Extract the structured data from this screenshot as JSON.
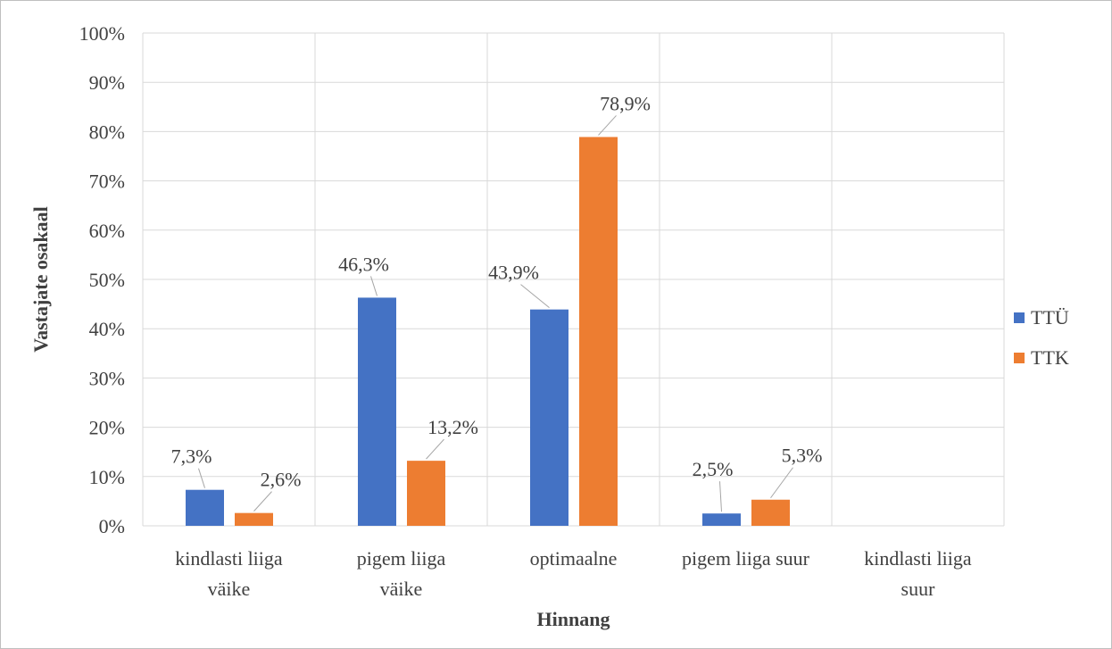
{
  "chart_data": {
    "type": "bar",
    "title": "",
    "xlabel": "Hinnang",
    "ylabel": "Vastajate osakaal",
    "ylim": [
      0,
      100
    ],
    "yticks": [
      "0%",
      "10%",
      "20%",
      "30%",
      "40%",
      "50%",
      "60%",
      "70%",
      "80%",
      "90%",
      "100%"
    ],
    "categories": [
      [
        "kindlasti liiga",
        "väike"
      ],
      [
        "pigem liiga",
        "väike"
      ],
      [
        "optimaalne"
      ],
      [
        "pigem liiga suur"
      ],
      [
        "kindlasti liiga",
        "suur"
      ]
    ],
    "series": [
      {
        "name": "TTÜ",
        "color": "#4472C4",
        "values": [
          7.3,
          46.3,
          43.9,
          2.5,
          null
        ],
        "labels": [
          "7,3%",
          "46,3%",
          "43,9%",
          "2,5%",
          ""
        ]
      },
      {
        "name": "TTK",
        "color": "#ED7D31",
        "values": [
          2.6,
          13.2,
          78.9,
          5.3,
          null
        ],
        "labels": [
          "2,6%",
          "13,2%",
          "78,9%",
          "5,3%",
          ""
        ]
      }
    ],
    "grid": true,
    "legend_position": "right"
  }
}
